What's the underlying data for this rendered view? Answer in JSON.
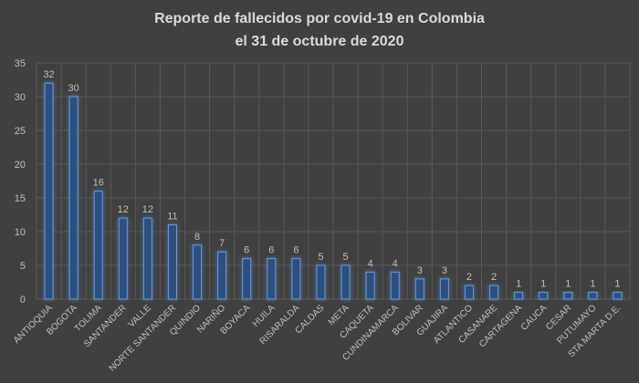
{
  "chart_data": {
    "type": "bar",
    "title": "Reporte de fallecidos por covid-19 en Colombia",
    "subtitle": "el 31 de octubre de 2020",
    "xlabel": "",
    "ylabel": "",
    "ylim": [
      0,
      35
    ],
    "yticks": [
      0,
      5,
      10,
      15,
      20,
      25,
      30,
      35
    ],
    "grid": true,
    "categories": [
      "ANTIOQUIA",
      "BOGOTA",
      "TOLIMA",
      "SANTANDER",
      "VALLE",
      "NORTE SANTANDER",
      "QUINDIO",
      "NARIÑO",
      "BOYACA",
      "HUILA",
      "RISARALDA",
      "CALDAS",
      "META",
      "CAQUETA",
      "CUNDINAMARCA",
      "BOLIVAR",
      "GUAJIRA",
      "ATLANTICO",
      "CASANARE",
      "CARTAGENA",
      "CAUCA",
      "CESAR",
      "PUTUMAYO",
      "STA MARTA D.E."
    ],
    "values": [
      32,
      30,
      16,
      12,
      12,
      11,
      8,
      7,
      6,
      6,
      6,
      5,
      5,
      4,
      4,
      3,
      3,
      2,
      2,
      1,
      1,
      1,
      1,
      1
    ],
    "colors": {
      "bar_fill": "#2f4f7f",
      "bar_stroke": "#6a9ad8",
      "glow": "#3f7fd0",
      "background": "#404040",
      "grid": "#595959",
      "text": "#bfbfbf"
    }
  }
}
